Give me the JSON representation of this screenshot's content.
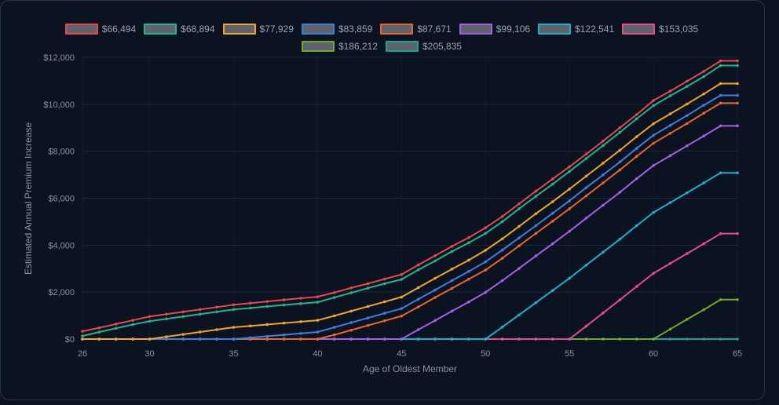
{
  "chart_data": {
    "type": "line",
    "xlabel": "Age of Oldest Member",
    "ylabel": "Estimated Annual Premium Increase",
    "xlim": [
      26,
      65
    ],
    "ylim": [
      0,
      12000
    ],
    "x_ticks": [
      "26",
      "30",
      "35",
      "40",
      "45",
      "50",
      "55",
      "60",
      "65"
    ],
    "y_ticks": [
      "$0",
      "$2,000",
      "$4,000",
      "$6,000",
      "$8,000",
      "$10,000",
      "$12,000"
    ],
    "grid": true,
    "legend_position": "top-center",
    "x": [
      26,
      27,
      28,
      29,
      30,
      31,
      32,
      33,
      34,
      35,
      36,
      37,
      38,
      39,
      40,
      41,
      42,
      43,
      44,
      45,
      46,
      47,
      48,
      49,
      50,
      51,
      52,
      53,
      54,
      55,
      56,
      57,
      58,
      59,
      60,
      61,
      62,
      63,
      64,
      65
    ],
    "series": [
      {
        "name": "$66,494",
        "color": "#e8474d",
        "values": [
          330,
          480,
          640,
          800,
          960,
          1060,
          1160,
          1260,
          1360,
          1460,
          1530,
          1600,
          1670,
          1740,
          1800,
          1980,
          2180,
          2360,
          2560,
          2750,
          3160,
          3550,
          3950,
          4320,
          4740,
          5220,
          5760,
          6300,
          6820,
          7340,
          7880,
          8430,
          9000,
          9560,
          10160,
          10560,
          10980,
          11400,
          11850,
          11850
        ]
      },
      {
        "name": "$68,894",
        "color": "#1fb58f",
        "values": [
          130,
          300,
          460,
          620,
          760,
          860,
          960,
          1060,
          1160,
          1260,
          1320,
          1390,
          1450,
          1510,
          1570,
          1770,
          1970,
          2170,
          2360,
          2540,
          2950,
          3330,
          3730,
          4100,
          4500,
          5000,
          5550,
          6080,
          6600,
          7140,
          7690,
          8240,
          8800,
          9380,
          9940,
          10360,
          10760,
          11180,
          11650,
          11650
        ]
      },
      {
        "name": "$77,929",
        "color": "#f0a42b",
        "values": [
          0,
          0,
          0,
          0,
          0,
          100,
          200,
          300,
          400,
          500,
          560,
          620,
          680,
          740,
          800,
          990,
          1190,
          1390,
          1590,
          1790,
          2190,
          2590,
          2980,
          3360,
          3780,
          4270,
          4800,
          5340,
          5850,
          6390,
          6940,
          7490,
          8040,
          8620,
          9170,
          9590,
          10010,
          10440,
          10880,
          10880
        ]
      },
      {
        "name": "$83,859",
        "color": "#3d7fe0",
        "values": [
          0,
          0,
          0,
          0,
          0,
          0,
          0,
          0,
          0,
          0,
          60,
          120,
          180,
          240,
          300,
          500,
          700,
          900,
          1100,
          1300,
          1700,
          2090,
          2490,
          2880,
          3290,
          3790,
          4310,
          4830,
          5360,
          5890,
          6450,
          6990,
          7540,
          8120,
          8680,
          9100,
          9520,
          9960,
          10380,
          10380
        ]
      },
      {
        "name": "$87,671",
        "color": "#e8662a",
        "values": [
          0,
          0,
          0,
          0,
          0,
          0,
          0,
          0,
          0,
          0,
          0,
          0,
          0,
          0,
          0,
          180,
          380,
          580,
          780,
          980,
          1370,
          1770,
          2160,
          2550,
          2940,
          3440,
          3970,
          4500,
          5020,
          5550,
          6100,
          6650,
          7200,
          7780,
          8340,
          8760,
          9180,
          9620,
          10050,
          10050
        ]
      },
      {
        "name": "$99,106",
        "color": "#a55ee8",
        "values": [
          0,
          0,
          0,
          0,
          0,
          0,
          0,
          0,
          0,
          0,
          0,
          0,
          0,
          0,
          0,
          0,
          0,
          0,
          0,
          0,
          400,
          790,
          1190,
          1580,
          1990,
          2490,
          3010,
          3540,
          4060,
          4590,
          5150,
          5700,
          6250,
          6830,
          7390,
          7810,
          8230,
          8650,
          9080,
          9080
        ]
      },
      {
        "name": "$122,541",
        "color": "#1ab0cf",
        "values": [
          0,
          0,
          0,
          0,
          0,
          0,
          0,
          0,
          0,
          0,
          0,
          0,
          0,
          0,
          0,
          0,
          0,
          0,
          0,
          0,
          0,
          0,
          0,
          0,
          0,
          510,
          1030,
          1550,
          2070,
          2590,
          3150,
          3700,
          4250,
          4830,
          5390,
          5810,
          6230,
          6650,
          7080,
          7080
        ]
      },
      {
        "name": "$153,035",
        "color": "#e84a8c",
        "values": [
          0,
          0,
          0,
          0,
          0,
          0,
          0,
          0,
          0,
          0,
          0,
          0,
          0,
          0,
          0,
          0,
          0,
          0,
          0,
          0,
          0,
          0,
          0,
          0,
          0,
          0,
          0,
          0,
          0,
          0,
          550,
          1110,
          1670,
          2240,
          2800,
          3220,
          3640,
          4060,
          4490,
          4490
        ]
      },
      {
        "name": "$186,212",
        "color": "#74a724",
        "values": [
          0,
          0,
          0,
          0,
          0,
          0,
          0,
          0,
          0,
          0,
          0,
          0,
          0,
          0,
          0,
          0,
          0,
          0,
          0,
          0,
          0,
          0,
          0,
          0,
          0,
          0,
          0,
          0,
          0,
          0,
          0,
          0,
          0,
          0,
          0,
          420,
          840,
          1250,
          1680,
          1680
        ]
      },
      {
        "name": "$205,835",
        "color": "#17a39b",
        "values": [
          0,
          0,
          0,
          0,
          0,
          0,
          0,
          0,
          0,
          0,
          0,
          0,
          0,
          0,
          0,
          0,
          0,
          0,
          0,
          0,
          0,
          0,
          0,
          0,
          0,
          0,
          0,
          0,
          0,
          0,
          0,
          0,
          0,
          0,
          0,
          0,
          0,
          0,
          0,
          0
        ]
      }
    ]
  }
}
